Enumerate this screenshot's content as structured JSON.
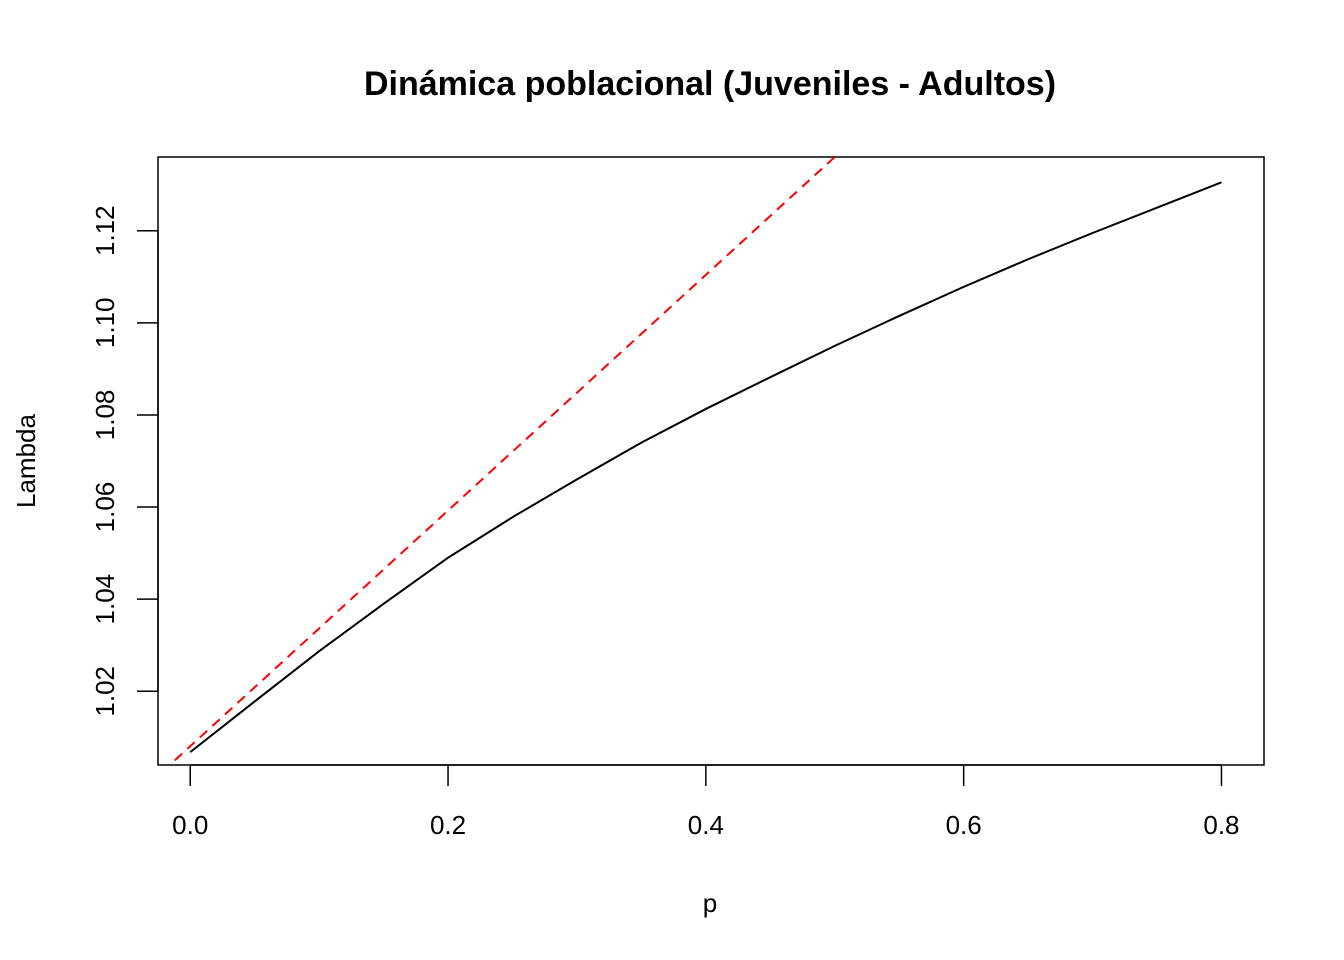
{
  "chart_data": {
    "type": "line",
    "title": "Dinámica poblacional (Juveniles - Adultos)",
    "xlabel": "p",
    "ylabel": "Lambda",
    "xlim": [
      -0.025,
      0.833
    ],
    "ylim": [
      1.004,
      1.136
    ],
    "x_ticks": [
      0.0,
      0.2,
      0.4,
      0.6,
      0.8
    ],
    "x_tick_labels": [
      "0.0",
      "0.2",
      "0.4",
      "0.6",
      "0.8"
    ],
    "y_ticks": [
      1.02,
      1.04,
      1.06,
      1.08,
      1.1,
      1.12
    ],
    "y_tick_labels": [
      "1.02",
      "1.04",
      "1.06",
      "1.08",
      "1.10",
      "1.12"
    ],
    "grid": false,
    "legend": "none",
    "series": [
      {
        "style": "solid",
        "color": "#000000",
        "x": [
          0.0,
          0.05,
          0.1,
          0.15,
          0.2,
          0.25,
          0.3,
          0.35,
          0.4,
          0.45,
          0.5,
          0.55,
          0.6,
          0.65,
          0.7,
          0.75,
          0.8
        ],
        "y": [
          1.0068,
          1.0178,
          1.0287,
          1.039,
          1.049,
          1.0578,
          1.066,
          1.074,
          1.0813,
          1.0882,
          1.095,
          1.1015,
          1.1078,
          1.1138,
          1.1195,
          1.125,
          1.1305
        ]
      },
      {
        "style": "dashed",
        "color": "#ff0000",
        "x": [
          -0.012,
          0.5
        ],
        "y": [
          1.005,
          1.136
        ]
      }
    ]
  }
}
